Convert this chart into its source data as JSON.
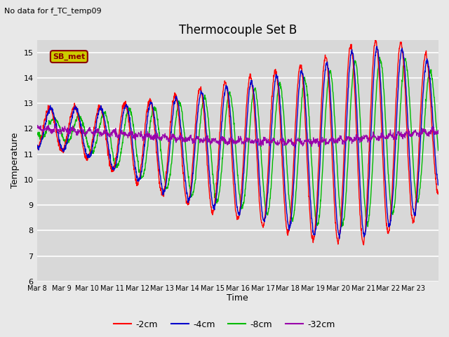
{
  "title": "Thermocouple Set B",
  "subtitle": "No data for f_TC_temp09",
  "ylabel": "Temperature",
  "xlabel": "Time",
  "ylim": [
    6.0,
    15.5
  ],
  "yticks": [
    6.0,
    7.0,
    8.0,
    9.0,
    10.0,
    11.0,
    12.0,
    13.0,
    14.0,
    15.0
  ],
  "fig_bg_color": "#e8e8e8",
  "plot_bg_color": "#d8d8d8",
  "series_colors": {
    "-2cm": "#ff0000",
    "-4cm": "#0000cc",
    "-8cm": "#00bb00",
    "-32cm": "#9900aa"
  },
  "legend_label": "SB_met",
  "legend_box_facecolor": "#cccc00",
  "legend_box_edgecolor": "#8b0000",
  "num_days": 16,
  "start_day": 8,
  "n_per_day": 96
}
